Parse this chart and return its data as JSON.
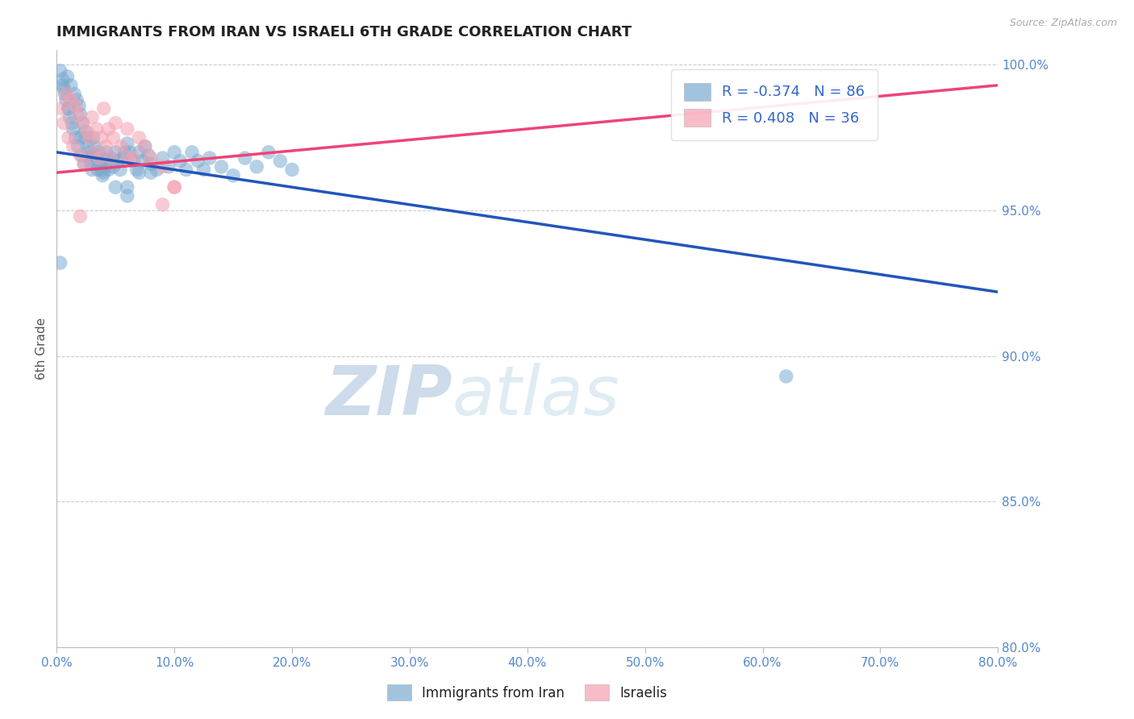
{
  "title": "IMMIGRANTS FROM IRAN VS ISRAELI 6TH GRADE CORRELATION CHART",
  "source_text": "Source: ZipAtlas.com",
  "xlabel_label": "Immigrants from Iran",
  "ylabel_label": "6th Grade",
  "xlim": [
    0.0,
    0.8
  ],
  "ylim": [
    0.8,
    1.005
  ],
  "xtick_labels": [
    "0.0%",
    "10.0%",
    "20.0%",
    "30.0%",
    "40.0%",
    "50.0%",
    "60.0%",
    "70.0%",
    "80.0%"
  ],
  "xtick_values": [
    0.0,
    0.1,
    0.2,
    0.3,
    0.4,
    0.5,
    0.6,
    0.7,
    0.8
  ],
  "ytick_labels": [
    "100.0%",
    "95.0%",
    "90.0%",
    "85.0%",
    "80.0%"
  ],
  "ytick_values": [
    1.0,
    0.95,
    0.9,
    0.85,
    0.8
  ],
  "blue_color": "#7AAAD0",
  "pink_color": "#F4A0B0",
  "blue_R": -0.374,
  "blue_N": 86,
  "pink_R": 0.408,
  "pink_N": 36,
  "blue_line_color": "#2255BB",
  "pink_line_color": "#EE4477",
  "blue_line_x0": 0.0,
  "blue_line_y0": 0.97,
  "blue_line_x1": 0.8,
  "blue_line_y1": 0.922,
  "pink_line_x0": 0.0,
  "pink_line_y0": 0.963,
  "pink_line_x1": 0.8,
  "pink_line_y1": 0.993,
  "blue_scatter_x": [
    0.003,
    0.005,
    0.006,
    0.007,
    0.008,
    0.009,
    0.01,
    0.011,
    0.012,
    0.013,
    0.014,
    0.015,
    0.016,
    0.017,
    0.018,
    0.019,
    0.02,
    0.021,
    0.022,
    0.023,
    0.024,
    0.025,
    0.026,
    0.027,
    0.028,
    0.029,
    0.03,
    0.031,
    0.032,
    0.033,
    0.034,
    0.035,
    0.036,
    0.037,
    0.038,
    0.039,
    0.04,
    0.041,
    0.042,
    0.043,
    0.044,
    0.046,
    0.048,
    0.05,
    0.052,
    0.054,
    0.056,
    0.058,
    0.06,
    0.062,
    0.065,
    0.068,
    0.07,
    0.073,
    0.075,
    0.078,
    0.08,
    0.085,
    0.09,
    0.095,
    0.1,
    0.105,
    0.11,
    0.115,
    0.12,
    0.125,
    0.13,
    0.14,
    0.15,
    0.16,
    0.17,
    0.18,
    0.19,
    0.2,
    0.005,
    0.01,
    0.02,
    0.03,
    0.04,
    0.05,
    0.06,
    0.08,
    0.003,
    0.07,
    0.06,
    0.62
  ],
  "blue_scatter_y": [
    0.998,
    0.995,
    0.992,
    0.99,
    0.988,
    0.996,
    0.985,
    0.982,
    0.993,
    0.98,
    0.978,
    0.99,
    0.975,
    0.988,
    0.972,
    0.986,
    0.983,
    0.969,
    0.98,
    0.966,
    0.977,
    0.975,
    0.972,
    0.97,
    0.968,
    0.966,
    0.964,
    0.975,
    0.972,
    0.969,
    0.966,
    0.964,
    0.97,
    0.967,
    0.964,
    0.962,
    0.968,
    0.965,
    0.97,
    0.967,
    0.964,
    0.968,
    0.965,
    0.97,
    0.967,
    0.964,
    0.968,
    0.97,
    0.973,
    0.97,
    0.967,
    0.964,
    0.97,
    0.967,
    0.972,
    0.969,
    0.966,
    0.964,
    0.968,
    0.965,
    0.97,
    0.967,
    0.964,
    0.97,
    0.967,
    0.964,
    0.968,
    0.965,
    0.962,
    0.968,
    0.965,
    0.97,
    0.967,
    0.964,
    0.993,
    0.985,
    0.975,
    0.968,
    0.963,
    0.958,
    0.958,
    0.963,
    0.932,
    0.963,
    0.955,
    0.893
  ],
  "pink_scatter_x": [
    0.004,
    0.006,
    0.008,
    0.01,
    0.012,
    0.014,
    0.016,
    0.018,
    0.02,
    0.022,
    0.024,
    0.026,
    0.028,
    0.03,
    0.032,
    0.034,
    0.036,
    0.038,
    0.04,
    0.042,
    0.044,
    0.046,
    0.048,
    0.05,
    0.055,
    0.06,
    0.065,
    0.07,
    0.075,
    0.08,
    0.09,
    0.1,
    0.02,
    0.06,
    0.09,
    0.1
  ],
  "pink_scatter_y": [
    0.985,
    0.98,
    0.99,
    0.975,
    0.988,
    0.972,
    0.986,
    0.983,
    0.969,
    0.98,
    0.966,
    0.977,
    0.975,
    0.982,
    0.97,
    0.978,
    0.968,
    0.975,
    0.985,
    0.972,
    0.978,
    0.968,
    0.975,
    0.98,
    0.972,
    0.978,
    0.968,
    0.975,
    0.972,
    0.968,
    0.965,
    0.958,
    0.948,
    0.968,
    0.952,
    0.958
  ],
  "watermark_zip": "ZIP",
  "watermark_atlas": "atlas",
  "watermark_color": "#C8D8E8",
  "background_color": "#FFFFFF",
  "grid_color": "#CCCCCC",
  "tick_color": "#5588CC",
  "legend_text_color": "#3366CC"
}
